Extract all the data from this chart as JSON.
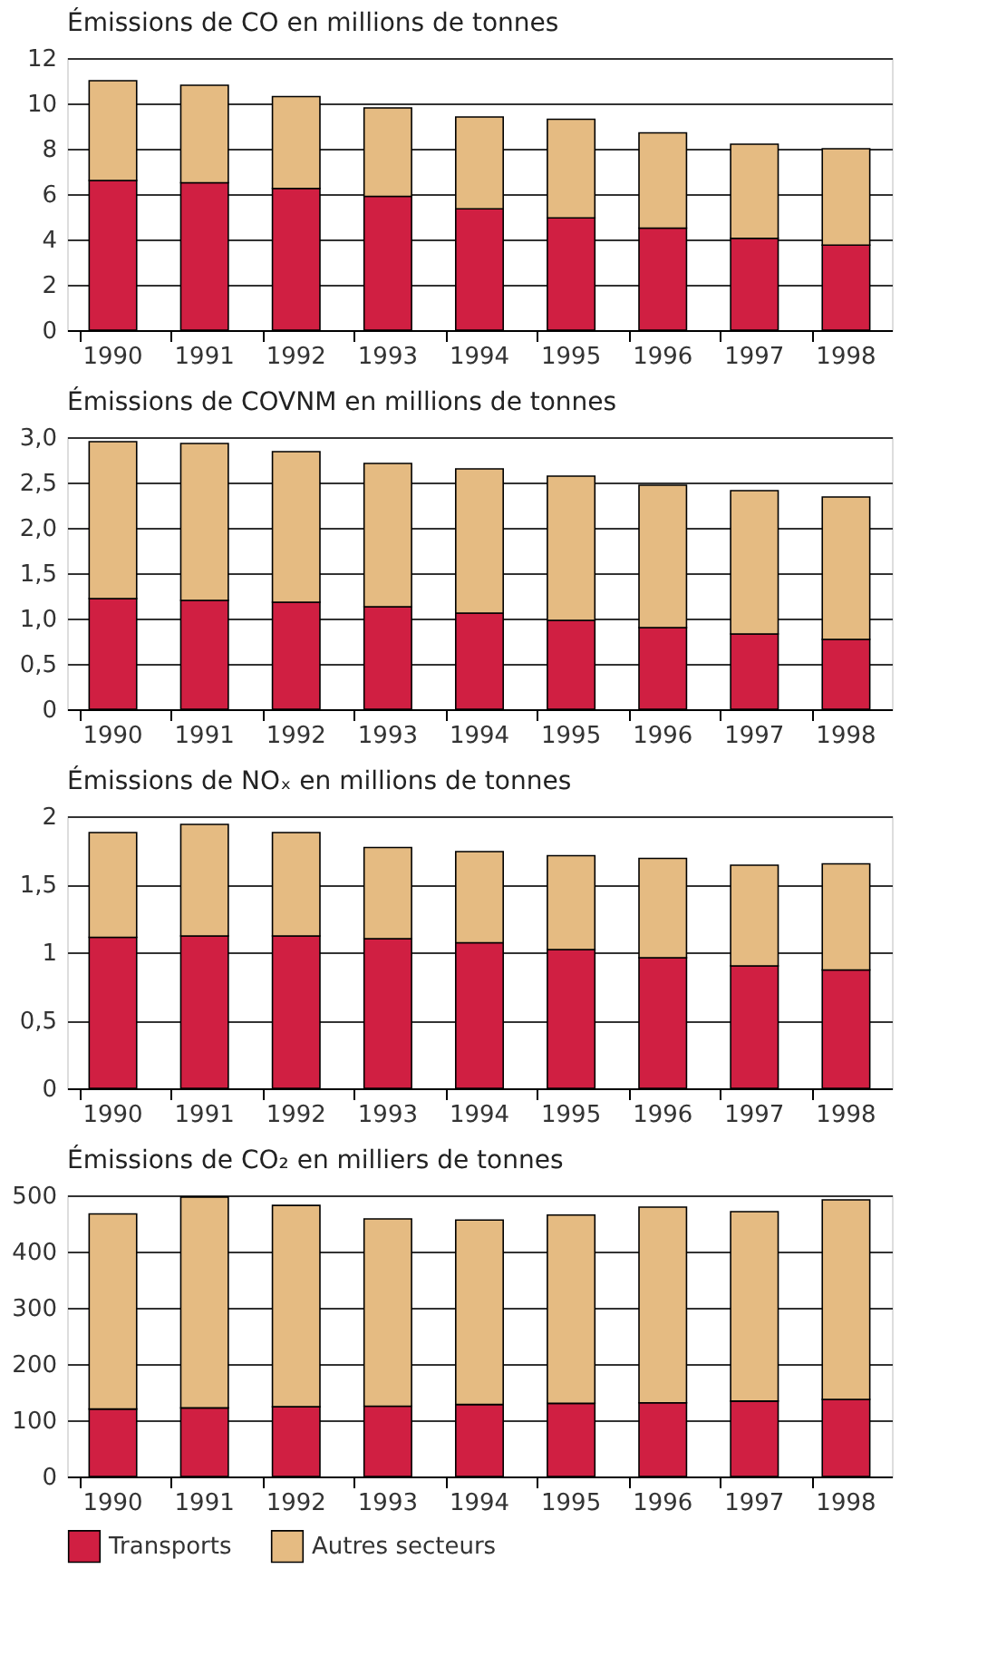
{
  "chart_data": [
    {
      "type": "bar",
      "stacked": true,
      "title": "Émissions de CO en millions de tonnes",
      "categories": [
        "1990",
        "1991",
        "1992",
        "1993",
        "1994",
        "1995",
        "1996",
        "1997",
        "1998"
      ],
      "ylim": [
        0,
        12
      ],
      "yticks": [
        0,
        2,
        4,
        6,
        8,
        10,
        12
      ],
      "grid": "y",
      "legend": false,
      "series": [
        {
          "color": "#d01f42",
          "values": [
            6.6,
            6.5,
            6.25,
            5.9,
            5.35,
            4.95,
            4.5,
            4.05,
            3.75
          ]
        },
        {
          "color": "#e5bb82",
          "values": [
            4.4,
            4.3,
            4.05,
            3.9,
            4.05,
            4.35,
            4.2,
            4.15,
            4.25
          ]
        }
      ]
    },
    {
      "type": "bar",
      "stacked": true,
      "title": "Émissions de COVNM en millions de tonnes",
      "categories": [
        "1990",
        "1991",
        "1992",
        "1993",
        "1994",
        "1995",
        "1996",
        "1997",
        "1998"
      ],
      "ylim": [
        0,
        3
      ],
      "yticks": [
        0,
        {
          "value": 0.5,
          "label": "0,5"
        },
        {
          "value": 1,
          "label": "1,0"
        },
        {
          "value": 1.5,
          "label": "1,5"
        },
        {
          "value": 2,
          "label": "2,0"
        },
        {
          "value": 2.5,
          "label": "2,5"
        },
        {
          "value": 3,
          "label": "3,0"
        }
      ],
      "grid": "y",
      "legend": false,
      "series": [
        {
          "color": "#d01f42",
          "values": [
            1.22,
            1.2,
            1.18,
            1.13,
            1.06,
            0.98,
            0.9,
            0.83,
            0.77
          ]
        },
        {
          "color": "#e5bb82",
          "values": [
            1.73,
            1.73,
            1.66,
            1.58,
            1.59,
            1.59,
            1.57,
            1.58,
            1.57
          ]
        }
      ]
    },
    {
      "type": "bar",
      "stacked": true,
      "title": "Émissions de NOₓ en millions de tonnes",
      "categories": [
        "1990",
        "1991",
        "1992",
        "1993",
        "1994",
        "1995",
        "1996",
        "1997",
        "1998"
      ],
      "ylim": [
        0,
        2
      ],
      "yticks": [
        0,
        {
          "value": 0.5,
          "label": "0,5"
        },
        1,
        {
          "value": 1.5,
          "label": "1,5"
        },
        2
      ],
      "grid": "y",
      "legend": false,
      "series": [
        {
          "color": "#d01f42",
          "values": [
            1.11,
            1.12,
            1.12,
            1.1,
            1.07,
            1.02,
            0.96,
            0.9,
            0.87
          ]
        },
        {
          "color": "#e5bb82",
          "values": [
            0.77,
            0.82,
            0.76,
            0.67,
            0.67,
            0.69,
            0.73,
            0.74,
            0.78
          ]
        }
      ]
    },
    {
      "type": "bar",
      "stacked": true,
      "title": "Émissions de CO₂ en milliers de tonnes",
      "categories": [
        "1990",
        "1991",
        "1992",
        "1993",
        "1994",
        "1995",
        "1996",
        "1997",
        "1998"
      ],
      "ylim": [
        0,
        500
      ],
      "yticks": [
        0,
        100,
        200,
        300,
        400,
        500
      ],
      "grid": "y",
      "legend": "bottom left",
      "series": [
        {
          "name": "Transports",
          "color": "#d01f42",
          "values": [
            120,
            122,
            124,
            125,
            128,
            130,
            131,
            134,
            137
          ]
        },
        {
          "name": "Autres secteurs",
          "color": "#e5bb82",
          "values": [
            347,
            375,
            358,
            333,
            328,
            335,
            348,
            337,
            355
          ]
        }
      ]
    }
  ]
}
